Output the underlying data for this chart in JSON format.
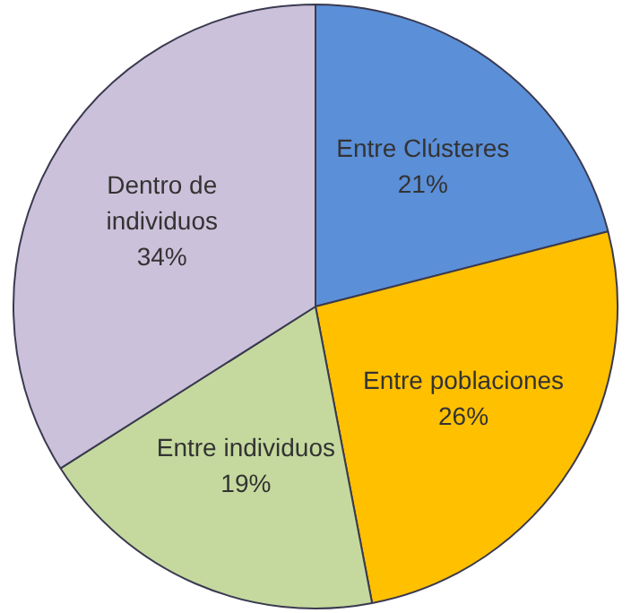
{
  "chart_data": {
    "type": "pie",
    "categories": [
      "Entre Clústeres",
      "Entre poblaciones",
      "Entre individuos",
      "Dentro de individuos"
    ],
    "values": [
      21,
      26,
      19,
      34
    ],
    "colors": [
      "#5b8fd8",
      "#ffc000",
      "#c5d99e",
      "#ccc1da"
    ],
    "value_labels": [
      "21%",
      "26%",
      "19%",
      "34%"
    ],
    "legend": false
  }
}
